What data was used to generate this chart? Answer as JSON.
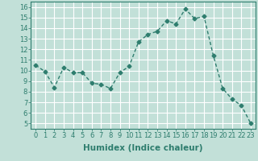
{
  "x": [
    0,
    1,
    2,
    3,
    4,
    5,
    6,
    7,
    8,
    9,
    10,
    11,
    12,
    13,
    14,
    15,
    16,
    17,
    18,
    19,
    20,
    21,
    22,
    23
  ],
  "y": [
    10.5,
    9.9,
    8.4,
    10.3,
    9.8,
    9.8,
    8.8,
    8.7,
    8.3,
    9.8,
    10.4,
    12.7,
    13.4,
    13.7,
    14.7,
    14.4,
    15.8,
    14.9,
    15.1,
    11.4,
    8.3,
    7.3,
    6.7,
    5.0
  ],
  "line_color": "#2e7d6e",
  "marker": "D",
  "marker_size": 2.5,
  "linewidth": 1.0,
  "bg_color": "#c2e0d8",
  "grid_color": "#ffffff",
  "xlabel": "Humidex (Indice chaleur)",
  "xlabel_fontsize": 7.5,
  "xlabel_weight": "bold",
  "ylim": [
    4.5,
    16.5
  ],
  "xlim": [
    -0.5,
    23.5
  ],
  "yticks": [
    5,
    6,
    7,
    8,
    9,
    10,
    11,
    12,
    13,
    14,
    15,
    16
  ],
  "xticks": [
    0,
    1,
    2,
    3,
    4,
    5,
    6,
    7,
    8,
    9,
    10,
    11,
    12,
    13,
    14,
    15,
    16,
    17,
    18,
    19,
    20,
    21,
    22,
    23
  ],
  "tick_fontsize": 6.0
}
